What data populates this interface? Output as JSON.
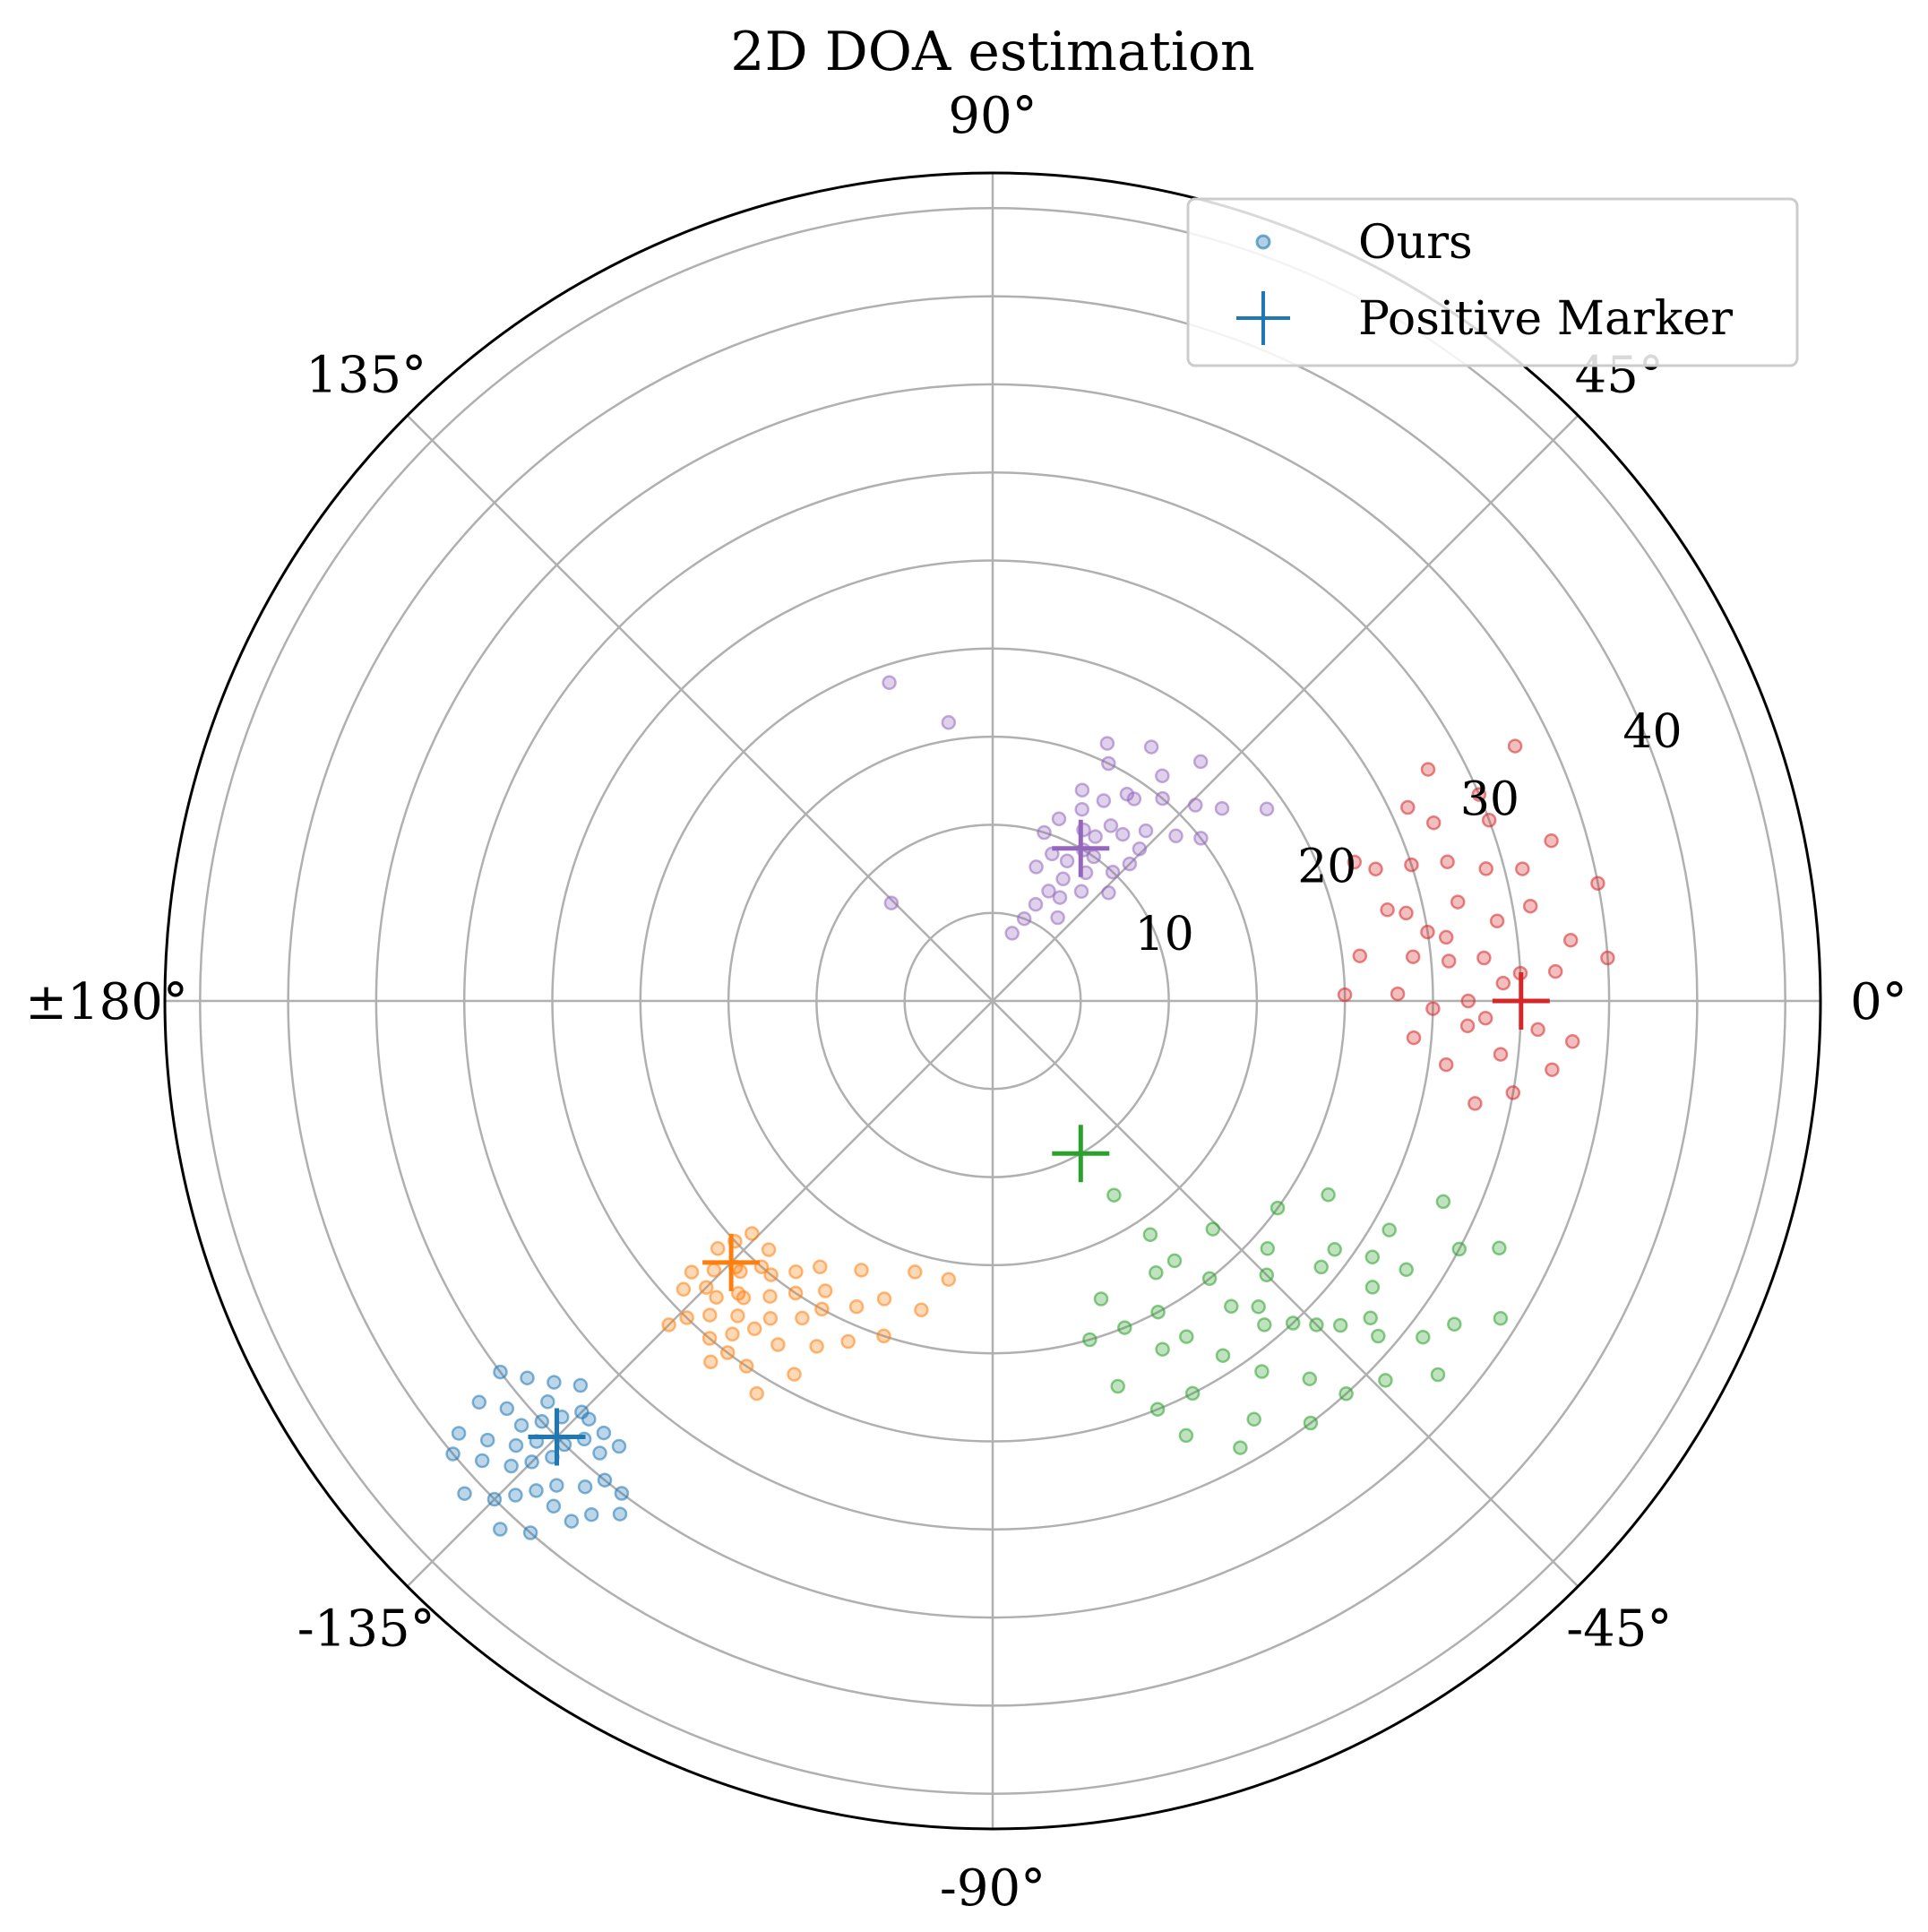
{
  "chart_data": {
    "type": "scatter",
    "projection": "polar",
    "title": "2D DOA estimation",
    "theta_ticks": [
      {
        "deg": 0,
        "label": "0°"
      },
      {
        "deg": 45,
        "label": "45°"
      },
      {
        "deg": 90,
        "label": "90°"
      },
      {
        "deg": 135,
        "label": "135°"
      },
      {
        "deg": 180,
        "label": "±180°"
      },
      {
        "deg": -135,
        "label": "-135°"
      },
      {
        "deg": -90,
        "label": "-90°"
      },
      {
        "deg": -45,
        "label": "-45°"
      }
    ],
    "r_ticks": [
      {
        "value": 10,
        "label": "10"
      },
      {
        "value": 20,
        "label": "20"
      },
      {
        "value": 30,
        "label": "30"
      },
      {
        "value": 40,
        "label": "40"
      }
    ],
    "r_max": 47,
    "r_label_angle_deg": 22.5,
    "grid": true,
    "legend": {
      "location": "top-right",
      "entries": [
        {
          "label": "Ours",
          "marker": "circle",
          "color": "#1f77b4"
        },
        {
          "label": "Positive Marker",
          "marker": "plus",
          "color": "#1f77b4"
        }
      ]
    },
    "series": [
      {
        "name": "Ours",
        "cluster": "source-1",
        "color": "#1f77b4",
        "marker_point": {
          "theta_deg": -135,
          "r": 35
        },
        "points": [
          {
            "theta_deg": -134,
            "r": 35
          },
          {
            "theta_deg": -137,
            "r": 37
          },
          {
            "theta_deg": -131,
            "r": 34
          },
          {
            "theta_deg": -139,
            "r": 33
          },
          {
            "theta_deg": -133,
            "r": 38
          },
          {
            "theta_deg": -136,
            "r": 36
          },
          {
            "theta_deg": -130,
            "r": 36
          },
          {
            "theta_deg": -140,
            "r": 36
          },
          {
            "theta_deg": -135,
            "r": 33
          },
          {
            "theta_deg": -138,
            "r": 39
          },
          {
            "theta_deg": -132,
            "r": 37
          },
          {
            "theta_deg": -129,
            "r": 35
          },
          {
            "theta_deg": -136,
            "r": 34
          },
          {
            "theta_deg": -134,
            "r": 39
          },
          {
            "theta_deg": -141,
            "r": 34
          },
          {
            "theta_deg": -133,
            "r": 34
          },
          {
            "theta_deg": -137,
            "r": 35
          },
          {
            "theta_deg": -128,
            "r": 37
          },
          {
            "theta_deg": -135,
            "r": 40
          },
          {
            "theta_deg": -139,
            "r": 38
          },
          {
            "theta_deg": -131,
            "r": 38
          },
          {
            "theta_deg": -138,
            "r": 34
          },
          {
            "theta_deg": -132,
            "r": 33
          },
          {
            "theta_deg": -127,
            "r": 35
          },
          {
            "theta_deg": -142,
            "r": 37
          },
          {
            "theta_deg": -134,
            "r": 36
          },
          {
            "theta_deg": -136,
            "r": 38
          },
          {
            "theta_deg": -130,
            "r": 33
          },
          {
            "theta_deg": -140,
            "r": 40
          },
          {
            "theta_deg": -133,
            "r": 41
          },
          {
            "theta_deg": -137,
            "r": 32
          },
          {
            "theta_deg": -129,
            "r": 38
          },
          {
            "theta_deg": -143,
            "r": 35
          },
          {
            "theta_deg": -135,
            "r": 37
          },
          {
            "theta_deg": -131,
            "r": 40
          },
          {
            "theta_deg": -138,
            "r": 36
          },
          {
            "theta_deg": -126,
            "r": 36
          },
          {
            "theta_deg": -141,
            "r": 39
          },
          {
            "theta_deg": -134,
            "r": 33
          },
          {
            "theta_deg": -137,
            "r": 41
          }
        ]
      },
      {
        "name": "Ours",
        "cluster": "source-2",
        "color": "#ff7f0e",
        "marker_point": {
          "theta_deg": -135,
          "r": 21
        },
        "points": [
          {
            "theta_deg": -134,
            "r": 21
          },
          {
            "theta_deg": -131,
            "r": 22
          },
          {
            "theta_deg": -137,
            "r": 20
          },
          {
            "theta_deg": -129,
            "r": 20
          },
          {
            "theta_deg": -133,
            "r": 23
          },
          {
            "theta_deg": -128,
            "r": 24
          },
          {
            "theta_deg": -136,
            "r": 22
          },
          {
            "theta_deg": -125,
            "r": 22
          },
          {
            "theta_deg": -132,
            "r": 19
          },
          {
            "theta_deg": -127,
            "r": 21
          },
          {
            "theta_deg": -138,
            "r": 21
          },
          {
            "theta_deg": -122,
            "r": 23
          },
          {
            "theta_deg": -130,
            "r": 25
          },
          {
            "theta_deg": -119,
            "r": 20
          },
          {
            "theta_deg": -124,
            "r": 25
          },
          {
            "theta_deg": -135,
            "r": 23
          },
          {
            "theta_deg": -126,
            "r": 19
          },
          {
            "theta_deg": -132,
            "r": 24
          },
          {
            "theta_deg": -121,
            "r": 21
          },
          {
            "theta_deg": -136,
            "r": 19
          },
          {
            "theta_deg": -117,
            "r": 22
          },
          {
            "theta_deg": -129,
            "r": 23
          },
          {
            "theta_deg": -114,
            "r": 19
          },
          {
            "theta_deg": -134,
            "r": 25
          },
          {
            "theta_deg": -123,
            "r": 18
          },
          {
            "theta_deg": -110,
            "r": 18
          },
          {
            "theta_deg": -128,
            "r": 26
          },
          {
            "theta_deg": -137,
            "r": 24
          },
          {
            "theta_deg": -118,
            "r": 24
          },
          {
            "theta_deg": -106,
            "r": 16
          },
          {
            "theta_deg": -131,
            "r": 20
          },
          {
            "theta_deg": -120,
            "r": 19
          },
          {
            "theta_deg": -99,
            "r": 16
          },
          {
            "theta_deg": -133,
            "r": 21
          },
          {
            "theta_deg": -126,
            "r": 23
          },
          {
            "theta_deg": -113,
            "r": 21
          },
          {
            "theta_deg": -138,
            "r": 23
          },
          {
            "theta_deg": -130,
            "r": 22
          },
          {
            "theta_deg": -116,
            "r": 17
          },
          {
            "theta_deg": -124,
            "r": 20
          },
          {
            "theta_deg": -108,
            "r": 20
          },
          {
            "theta_deg": -135,
            "r": 26
          },
          {
            "theta_deg": -127,
            "r": 25
          },
          {
            "theta_deg": -121,
            "r": 26
          },
          {
            "theta_deg": -103,
            "r": 18
          }
        ]
      },
      {
        "name": "Ours",
        "cluster": "source-3",
        "color": "#2ca02c",
        "marker_point": {
          "theta_deg": -60,
          "r": 10
        },
        "points": [
          {
            "theta_deg": -68,
            "r": 20
          },
          {
            "theta_deg": -60,
            "r": 22
          },
          {
            "theta_deg": -55,
            "r": 18
          },
          {
            "theta_deg": -72,
            "r": 23
          },
          {
            "theta_deg": -50,
            "r": 24
          },
          {
            "theta_deg": -45,
            "r": 26
          },
          {
            "theta_deg": -63,
            "r": 25
          },
          {
            "theta_deg": -40,
            "r": 28
          },
          {
            "theta_deg": -36,
            "r": 24
          },
          {
            "theta_deg": -58,
            "r": 28
          },
          {
            "theta_deg": -48,
            "r": 30
          },
          {
            "theta_deg": -42,
            "r": 21
          },
          {
            "theta_deg": -33,
            "r": 28
          },
          {
            "theta_deg": -52,
            "r": 20
          },
          {
            "theta_deg": -66,
            "r": 27
          },
          {
            "theta_deg": -38,
            "r": 31
          },
          {
            "theta_deg": -30,
            "r": 26
          },
          {
            "theta_deg": -45,
            "r": 22
          },
          {
            "theta_deg": -57,
            "r": 24
          },
          {
            "theta_deg": -70,
            "r": 18
          },
          {
            "theta_deg": -43,
            "r": 27
          },
          {
            "theta_deg": -35,
            "r": 32
          },
          {
            "theta_deg": -50,
            "r": 28
          },
          {
            "theta_deg": -62,
            "r": 20
          },
          {
            "theta_deg": -28,
            "r": 30
          },
          {
            "theta_deg": -47,
            "r": 25
          },
          {
            "theta_deg": -39,
            "r": 24
          },
          {
            "theta_deg": -54,
            "r": 26
          },
          {
            "theta_deg": -32,
            "r": 34
          },
          {
            "theta_deg": -68,
            "r": 25
          },
          {
            "theta_deg": -41,
            "r": 29
          },
          {
            "theta_deg": -59,
            "r": 18
          },
          {
            "theta_deg": -26,
            "r": 32
          },
          {
            "theta_deg": -46,
            "r": 18
          },
          {
            "theta_deg": -37,
            "r": 27
          },
          {
            "theta_deg": -53,
            "r": 30
          },
          {
            "theta_deg": -64,
            "r": 22
          },
          {
            "theta_deg": -30,
            "r": 22
          },
          {
            "theta_deg": -44,
            "r": 31
          },
          {
            "theta_deg": -56,
            "r": 16
          },
          {
            "theta_deg": -49,
            "r": 23
          },
          {
            "theta_deg": -34,
            "r": 26
          },
          {
            "theta_deg": -61,
            "r": 29
          },
          {
            "theta_deg": -24,
            "r": 28
          },
          {
            "theta_deg": -40,
            "r": 33
          },
          {
            "theta_deg": -52,
            "r": 22
          },
          {
            "theta_deg": -74,
            "r": 20
          },
          {
            "theta_deg": -36,
            "r": 20
          },
          {
            "theta_deg": -58,
            "r": 13
          }
        ]
      },
      {
        "name": "Ours",
        "cluster": "source-4",
        "color": "#d62728",
        "marker_point": {
          "theta_deg": 0,
          "r": 30
        },
        "points": [
          {
            "theta_deg": 2,
            "r": 29
          },
          {
            "theta_deg": -3,
            "r": 31
          },
          {
            "theta_deg": 5,
            "r": 28
          },
          {
            "theta_deg": 8,
            "r": 26
          },
          {
            "theta_deg": -6,
            "r": 29
          },
          {
            "theta_deg": 12,
            "r": 27
          },
          {
            "theta_deg": 15,
            "r": 29
          },
          {
            "theta_deg": 3,
            "r": 32
          },
          {
            "theta_deg": -1,
            "r": 25
          },
          {
            "theta_deg": 10,
            "r": 31
          },
          {
            "theta_deg": 18,
            "r": 25
          },
          {
            "theta_deg": -8,
            "r": 26
          },
          {
            "theta_deg": 6,
            "r": 24
          },
          {
            "theta_deg": 20,
            "r": 30
          },
          {
            "theta_deg": 1,
            "r": 20
          },
          {
            "theta_deg": -4,
            "r": 33
          },
          {
            "theta_deg": 13,
            "r": 23
          },
          {
            "theta_deg": 22,
            "r": 27
          },
          {
            "theta_deg": 9,
            "r": 29
          },
          {
            "theta_deg": -10,
            "r": 30
          },
          {
            "theta_deg": 4,
            "r": 35
          },
          {
            "theta_deg": 16,
            "r": 33
          },
          {
            "theta_deg": 7,
            "r": 21
          },
          {
            "theta_deg": 25,
            "r": 26
          },
          {
            "theta_deg": -2,
            "r": 28
          },
          {
            "theta_deg": 11,
            "r": 35
          },
          {
            "theta_deg": 19,
            "r": 23
          },
          {
            "theta_deg": 0,
            "r": 27
          },
          {
            "theta_deg": -5,
            "r": 24
          },
          {
            "theta_deg": 14,
            "r": 31
          },
          {
            "theta_deg": 26,
            "r": 33
          },
          {
            "theta_deg": 3,
            "r": 30
          },
          {
            "theta_deg": 9,
            "r": 25
          },
          {
            "theta_deg": -7,
            "r": 32
          },
          {
            "theta_deg": 17,
            "r": 27
          },
          {
            "theta_deg": 6,
            "r": 33
          },
          {
            "theta_deg": 23,
            "r": 30
          },
          {
            "theta_deg": -12,
            "r": 28
          },
          {
            "theta_deg": 1,
            "r": 23
          },
          {
            "theta_deg": 12,
            "r": 24
          },
          {
            "theta_deg": 28,
            "r": 28
          },
          {
            "theta_deg": 5,
            "r": 26
          },
          {
            "theta_deg": -3,
            "r": 27
          },
          {
            "theta_deg": 21,
            "r": 22
          }
        ]
      },
      {
        "name": "Ours",
        "cluster": "source-5",
        "color": "#9467bd",
        "marker_point": {
          "theta_deg": 60,
          "r": 10
        },
        "points": [
          {
            "theta_deg": 62,
            "r": 9
          },
          {
            "theta_deg": 58,
            "r": 11
          },
          {
            "theta_deg": 55,
            "r": 10
          },
          {
            "theta_deg": 65,
            "r": 12
          },
          {
            "theta_deg": 52,
            "r": 12
          },
          {
            "theta_deg": 48,
            "r": 13
          },
          {
            "theta_deg": 60,
            "r": 8
          },
          {
            "theta_deg": 68,
            "r": 9
          },
          {
            "theta_deg": 45,
            "r": 11
          },
          {
            "theta_deg": 57,
            "r": 14
          },
          {
            "theta_deg": 50,
            "r": 15
          },
          {
            "theta_deg": 63,
            "r": 7
          },
          {
            "theta_deg": 54,
            "r": 9
          },
          {
            "theta_deg": 70,
            "r": 11
          },
          {
            "theta_deg": 42,
            "r": 14
          },
          {
            "theta_deg": 61,
            "r": 13
          },
          {
            "theta_deg": 47,
            "r": 10
          },
          {
            "theta_deg": 66,
            "r": 6
          },
          {
            "theta_deg": 53,
            "r": 16
          },
          {
            "theta_deg": 59,
            "r": 10
          },
          {
            "theta_deg": 44,
            "r": 16
          },
          {
            "theta_deg": 72,
            "r": 8
          },
          {
            "theta_deg": 56,
            "r": 12
          },
          {
            "theta_deg": 40,
            "r": 17
          },
          {
            "theta_deg": 64,
            "r": 15
          },
          {
            "theta_deg": 51,
            "r": 8
          },
          {
            "theta_deg": 67,
            "r": 13
          },
          {
            "theta_deg": 46,
            "r": 12
          },
          {
            "theta_deg": 58,
            "r": 17
          },
          {
            "theta_deg": 38,
            "r": 15
          },
          {
            "theta_deg": 69,
            "r": 5
          },
          {
            "theta_deg": 55,
            "r": 14
          },
          {
            "theta_deg": 62,
            "r": 11
          },
          {
            "theta_deg": 35,
            "r": 19
          },
          {
            "theta_deg": 49,
            "r": 18
          },
          {
            "theta_deg": 74,
            "r": 4
          },
          {
            "theta_deg": 57,
            "r": 7
          },
          {
            "theta_deg": 43,
            "r": 9
          },
          {
            "theta_deg": 66,
            "r": 16
          },
          {
            "theta_deg": 99,
            "r": 16
          },
          {
            "theta_deg": 108,
            "r": 19
          },
          {
            "theta_deg": 136,
            "r": 8
          },
          {
            "theta_deg": 73,
            "r": 10
          },
          {
            "theta_deg": 52,
            "r": 6
          }
        ]
      }
    ]
  }
}
